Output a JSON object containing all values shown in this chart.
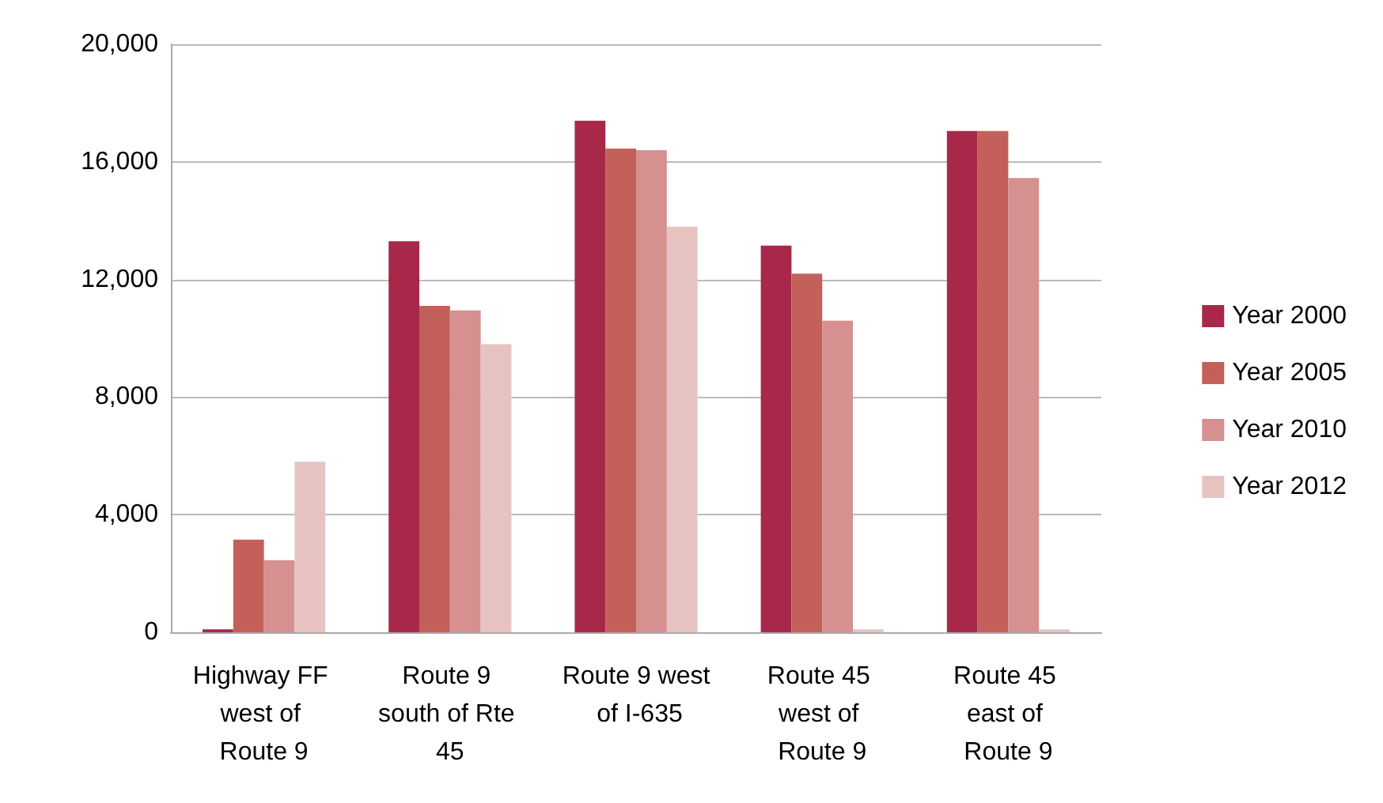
{
  "chart_data": {
    "type": "bar",
    "categories": [
      "Highway FF west of Route 9",
      "Route 9 south of Rte 45",
      "Route 9 west of I-635",
      "Route 45 west of Route 9",
      "Route 45 east of Route 9"
    ],
    "series": [
      {
        "name": "Year 2000",
        "color": "#a8284a",
        "values": [
          100,
          13300,
          17400,
          13150,
          17050
        ]
      },
      {
        "name": "Year 2005",
        "color": "#c4605a",
        "values": [
          3150,
          11100,
          16450,
          12200,
          17050
        ]
      },
      {
        "name": "Year 2010",
        "color": "#d69090",
        "values": [
          2450,
          10950,
          16400,
          10600,
          15450
        ]
      },
      {
        "name": "Year 2012",
        "color": "#e6c3c1",
        "values": [
          5800,
          9800,
          13800,
          100,
          100
        ]
      }
    ],
    "ylim": [
      0,
      20000
    ],
    "yticks": [
      0,
      {
        "value": 4000,
        "label": "4,000"
      },
      {
        "value": 8000,
        "label": "8,000"
      },
      {
        "value": 12000,
        "label": "12,000"
      },
      {
        "value": 16000,
        "label": "16,000"
      },
      {
        "value": 20000,
        "label": "20,000"
      }
    ],
    "grid": "y",
    "legend": "right"
  }
}
